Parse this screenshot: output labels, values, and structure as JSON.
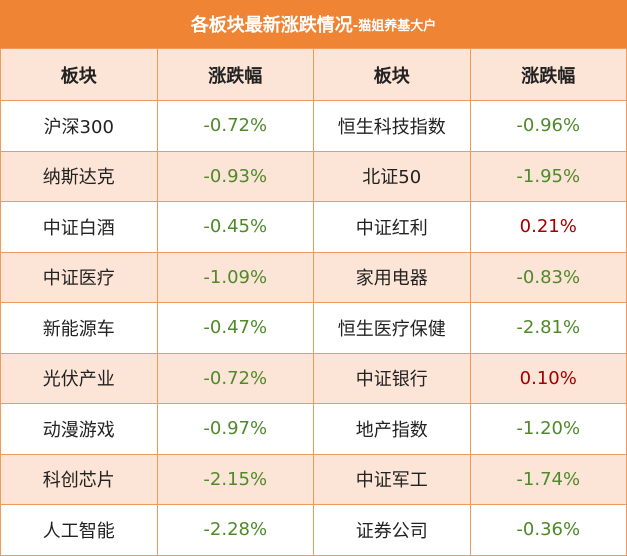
{
  "header": {
    "title": "各板块最新涨跌情况",
    "suffix": "-猫姐养基大户"
  },
  "table": {
    "columns": [
      "板块",
      "涨跌幅",
      "板块",
      "涨跌幅"
    ],
    "rows": [
      [
        "沪深300",
        "-0.72%",
        "恒生科技指数",
        "-0.96%"
      ],
      [
        "纳斯达克",
        "-0.93%",
        "北证50",
        "-1.95%"
      ],
      [
        "中证白酒",
        "-0.45%",
        "中证红利",
        "0.21%"
      ],
      [
        "中证医疗",
        "-1.09%",
        "家用电器",
        "-0.83%"
      ],
      [
        "新能源车",
        "-0.47%",
        "恒生医疗保健",
        "-2.81%"
      ],
      [
        "光伏产业",
        "-0.72%",
        "中证银行",
        "0.10%"
      ],
      [
        "动漫游戏",
        "-0.97%",
        "地产指数",
        "-1.20%"
      ],
      [
        "科创芯片",
        "-2.15%",
        "中证军工",
        "-1.74%"
      ],
      [
        "人工智能",
        "-2.28%",
        "证券公司",
        "-0.36%"
      ]
    ]
  }
}
